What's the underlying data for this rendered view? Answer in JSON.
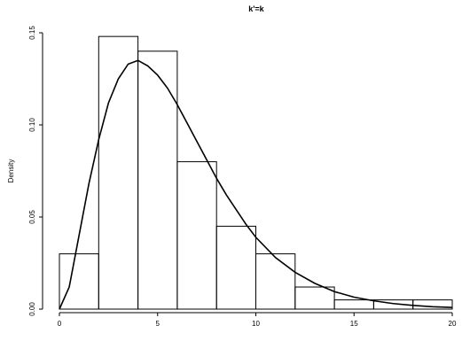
{
  "chart_data": {
    "type": "bar",
    "title": "k'=k",
    "xlabel": "",
    "ylabel": "Density",
    "xlim": [
      0,
      20
    ],
    "ylim": [
      0,
      0.15
    ],
    "grid": false,
    "x_ticks": [
      0,
      5,
      10,
      15,
      20
    ],
    "x_tick_labels": [
      "0",
      "5",
      "10",
      "15",
      "20"
    ],
    "y_ticks": [
      0,
      0.05,
      0.1,
      0.15
    ],
    "y_tick_labels": [
      "0.00",
      "0.05",
      "0.10",
      "0.15"
    ],
    "bins": [
      {
        "x0": 0,
        "x1": 2,
        "density": 0.03
      },
      {
        "x0": 2,
        "x1": 4,
        "density": 0.148
      },
      {
        "x0": 4,
        "x1": 6,
        "density": 0.14
      },
      {
        "x0": 6,
        "x1": 8,
        "density": 0.08
      },
      {
        "x0": 8,
        "x1": 10,
        "density": 0.045
      },
      {
        "x0": 10,
        "x1": 12,
        "density": 0.03
      },
      {
        "x0": 12,
        "x1": 14,
        "density": 0.012
      },
      {
        "x0": 14,
        "x1": 16,
        "density": 0.005
      },
      {
        "x0": 16,
        "x1": 18,
        "density": 0.005
      },
      {
        "x0": 18,
        "x1": 20,
        "density": 0.005
      }
    ],
    "density_curve": {
      "x": [
        0,
        0.5,
        1,
        1.5,
        2,
        2.5,
        3,
        3.5,
        4,
        4.5,
        5,
        5.5,
        6,
        6.5,
        7,
        7.5,
        8,
        8.5,
        9,
        9.5,
        10,
        11,
        12,
        13,
        14,
        15,
        16,
        17,
        18,
        19,
        20
      ],
      "y": [
        0,
        0.012,
        0.04,
        0.068,
        0.092,
        0.112,
        0.125,
        0.133,
        0.135,
        0.132,
        0.127,
        0.12,
        0.111,
        0.101,
        0.091,
        0.081,
        0.071,
        0.062,
        0.054,
        0.046,
        0.039,
        0.028,
        0.02,
        0.014,
        0.0095,
        0.0065,
        0.0045,
        0.003,
        0.002,
        0.0013,
        0.0009
      ]
    }
  }
}
